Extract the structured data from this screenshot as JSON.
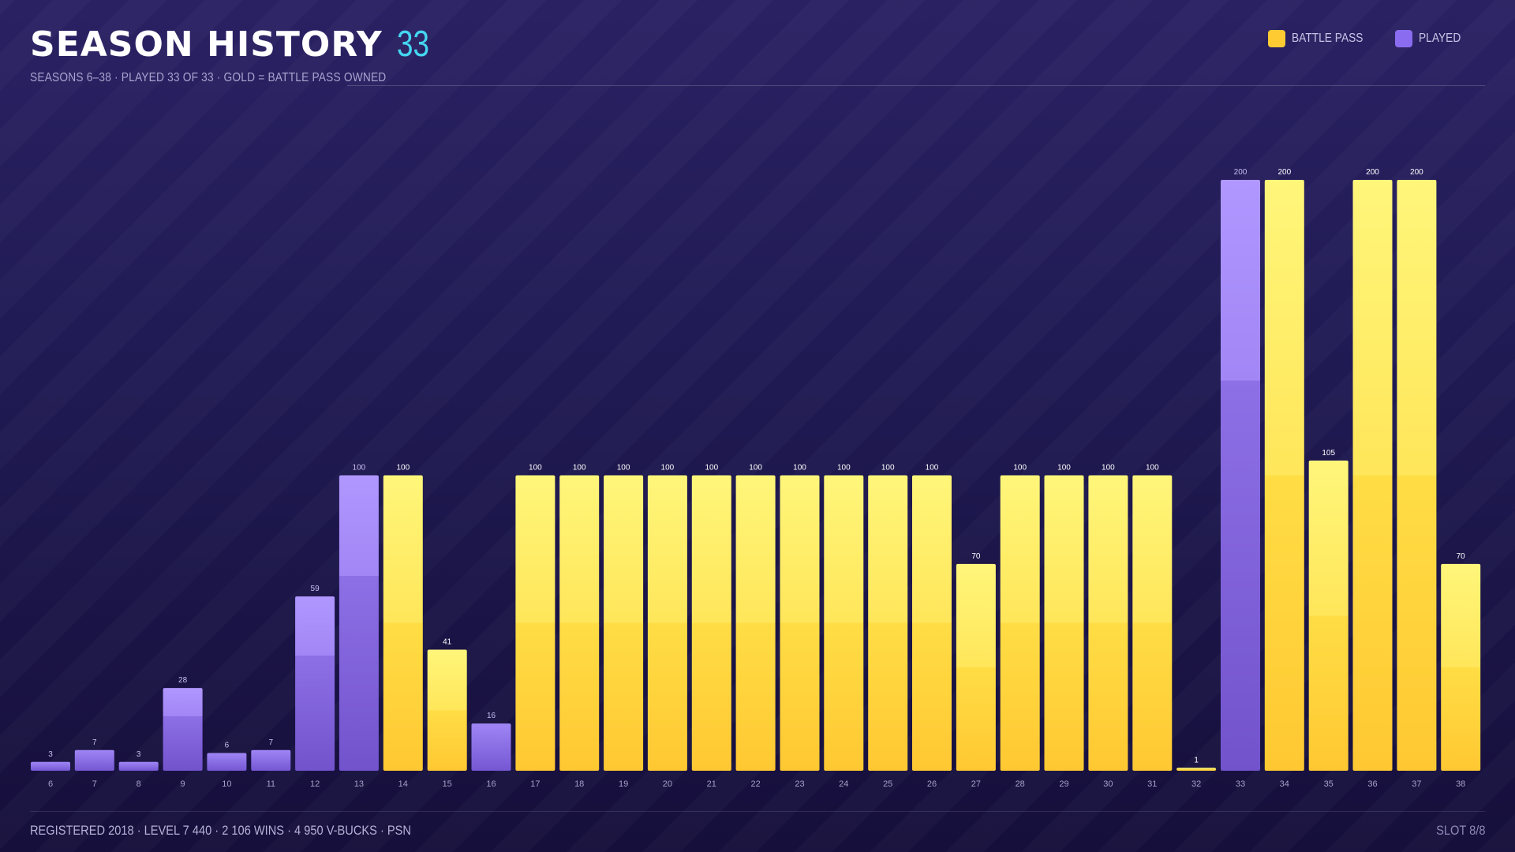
{
  "header": {
    "title": "SEASON HISTORY",
    "count": "33",
    "subtitle": "SEASONS 6–38 · PLAYED 33 OF 33 · GOLD = BATTLE PASS OWNED"
  },
  "legend": {
    "battle_pass": "BATTLE PASS",
    "played": "PLAYED"
  },
  "footer": {
    "left": "REGISTERED 2018 · LEVEL 7 440 · 2 106 WINS · 4 950 V-BUCKS · PSN",
    "right": "SLOT 8/8"
  },
  "colors": {
    "battle_pass": "#ffd93a",
    "played": "#8a6cf0",
    "accent": "#44d6f0"
  },
  "chart_data": {
    "type": "bar",
    "title": "SEASON HISTORY",
    "xlabel": "",
    "ylabel": "",
    "ylim": [
      0,
      200
    ],
    "grid": false,
    "legend_position": "top-right",
    "categories": [
      "6",
      "7",
      "8",
      "9",
      "10",
      "11",
      "12",
      "13",
      "14",
      "15",
      "16",
      "17",
      "18",
      "19",
      "20",
      "21",
      "22",
      "23",
      "24",
      "25",
      "26",
      "27",
      "28",
      "29",
      "30",
      "31",
      "32",
      "33",
      "34",
      "35",
      "36",
      "37",
      "38"
    ],
    "values": [
      3,
      7,
      3,
      28,
      6,
      7,
      59,
      100,
      100,
      41,
      16,
      100,
      100,
      100,
      100,
      100,
      100,
      100,
      100,
      100,
      100,
      70,
      100,
      100,
      100,
      100,
      1,
      200,
      200,
      105,
      200,
      200,
      70
    ],
    "series_type": [
      "played",
      "played",
      "played",
      "played",
      "played",
      "played",
      "played",
      "played",
      "battle_pass",
      "battle_pass",
      "played",
      "battle_pass",
      "battle_pass",
      "battle_pass",
      "battle_pass",
      "battle_pass",
      "battle_pass",
      "battle_pass",
      "battle_pass",
      "battle_pass",
      "battle_pass",
      "battle_pass",
      "battle_pass",
      "battle_pass",
      "battle_pass",
      "battle_pass",
      "battle_pass",
      "played",
      "battle_pass",
      "battle_pass",
      "battle_pass",
      "battle_pass",
      "battle_pass"
    ]
  }
}
